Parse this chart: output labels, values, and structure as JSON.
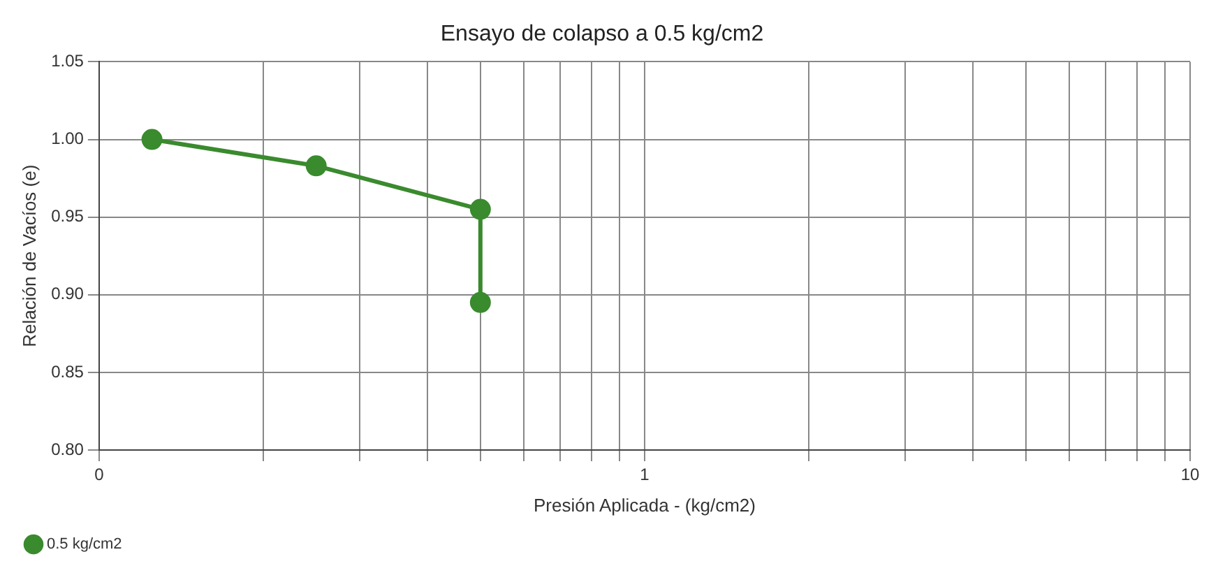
{
  "chart_data": {
    "type": "line",
    "title": "Ensayo de colapso a 0.5 kg/cm2",
    "xlabel": "Presión Aplicada - (kg/cm2)",
    "ylabel": "Relación de Vacíos (e)",
    "log": "x",
    "xlim": [
      0.1,
      10
    ],
    "ylim": [
      0.8,
      1.05
    ],
    "xticks": [
      {
        "value": 0.1,
        "label": "0"
      },
      {
        "value": 0.2,
        "label": null
      },
      {
        "value": 0.3,
        "label": null
      },
      {
        "value": 0.4,
        "label": null
      },
      {
        "value": 0.5,
        "label": null
      },
      {
        "value": 0.6,
        "label": null
      },
      {
        "value": 0.7,
        "label": null
      },
      {
        "value": 0.8,
        "label": null
      },
      {
        "value": 0.9,
        "label": null
      },
      1,
      {
        "value": 2,
        "label": null
      },
      {
        "value": 3,
        "label": null
      },
      {
        "value": 4,
        "label": null
      },
      {
        "value": 5,
        "label": null
      },
      {
        "value": 6,
        "label": null
      },
      {
        "value": 7,
        "label": null
      },
      {
        "value": 8,
        "label": null
      },
      {
        "value": 9,
        "label": null
      },
      10
    ],
    "yticks": [
      {
        "value": 0.8,
        "label": "0.80"
      },
      0.85,
      {
        "value": 0.9,
        "label": "0.90"
      },
      0.95,
      {
        "value": 1.0,
        "label": "1.00"
      },
      1.05
    ],
    "x": [
      0.125,
      0.25,
      0.5,
      0.5
    ],
    "series": [
      {
        "name": "0.5 kg/cm2",
        "color": "#3a8a2e",
        "values": [
          1.0,
          0.983,
          0.955,
          0.895
        ]
      }
    ],
    "grid": true,
    "legend": "bottom left",
    "marker": "circle",
    "line_style": "solid"
  }
}
